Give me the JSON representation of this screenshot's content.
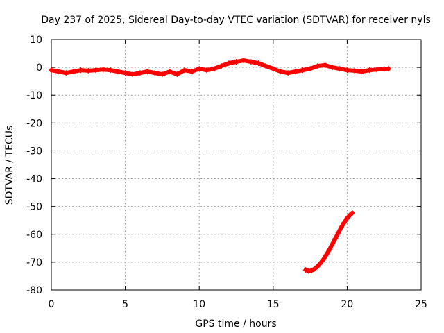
{
  "chart_data": {
    "type": "scatter",
    "title": "Day 237 of 2025, Sidereal Day-to-day VTEC variation (SDTVAR) for receiver nyls",
    "xlabel": "GPS time / hours",
    "ylabel": "SDTVAR / TECUs",
    "xlim": [
      0,
      25
    ],
    "ylim": [
      -80,
      10
    ],
    "xticks": [
      0,
      5,
      10,
      15,
      20,
      25
    ],
    "yticks": [
      10,
      0,
      -10,
      -20,
      -30,
      -40,
      -50,
      -60,
      -70,
      -80
    ],
    "grid": true,
    "marker": "plus",
    "color": "#ff0000",
    "series": [
      {
        "name": "main track",
        "x": [
          0.0,
          0.5,
          1.0,
          1.5,
          2.0,
          2.5,
          3.0,
          3.5,
          4.0,
          4.5,
          5.0,
          5.5,
          6.0,
          6.5,
          7.0,
          7.5,
          8.0,
          8.5,
          9.0,
          9.5,
          10.0,
          10.5,
          11.0,
          11.5,
          12.0,
          12.5,
          13.0,
          13.5,
          14.0,
          14.5,
          15.0,
          15.5,
          16.0,
          16.5,
          17.0,
          17.5,
          18.0,
          18.5,
          19.0,
          19.5,
          20.0,
          20.5,
          21.0,
          21.5,
          22.0,
          22.5,
          22.8
        ],
        "y": [
          -1.0,
          -1.5,
          -2.0,
          -1.5,
          -1.0,
          -1.2,
          -1.0,
          -0.8,
          -1.0,
          -1.5,
          -2.0,
          -2.5,
          -2.0,
          -1.5,
          -2.0,
          -2.5,
          -1.5,
          -2.5,
          -1.0,
          -1.5,
          -0.5,
          -1.0,
          -0.5,
          0.5,
          1.5,
          2.0,
          2.5,
          2.0,
          1.5,
          0.5,
          -0.5,
          -1.5,
          -2.0,
          -1.5,
          -1.0,
          -0.5,
          0.5,
          0.8,
          0.0,
          -0.5,
          -1.0,
          -1.2,
          -1.5,
          -1.0,
          -0.8,
          -0.6,
          -0.5
        ]
      },
      {
        "name": "descending arc",
        "x": [
          17.2,
          17.4,
          17.6,
          17.8,
          18.0,
          18.2,
          18.4,
          18.6,
          18.8,
          19.0,
          19.2,
          19.4,
          19.6,
          19.8,
          20.0,
          20.2,
          20.35
        ],
        "y": [
          -72.8,
          -73.2,
          -73.0,
          -72.4,
          -71.5,
          -70.3,
          -69.0,
          -67.3,
          -65.5,
          -63.5,
          -61.5,
          -59.5,
          -57.5,
          -55.8,
          -54.2,
          -53.0,
          -52.3
        ]
      }
    ]
  }
}
